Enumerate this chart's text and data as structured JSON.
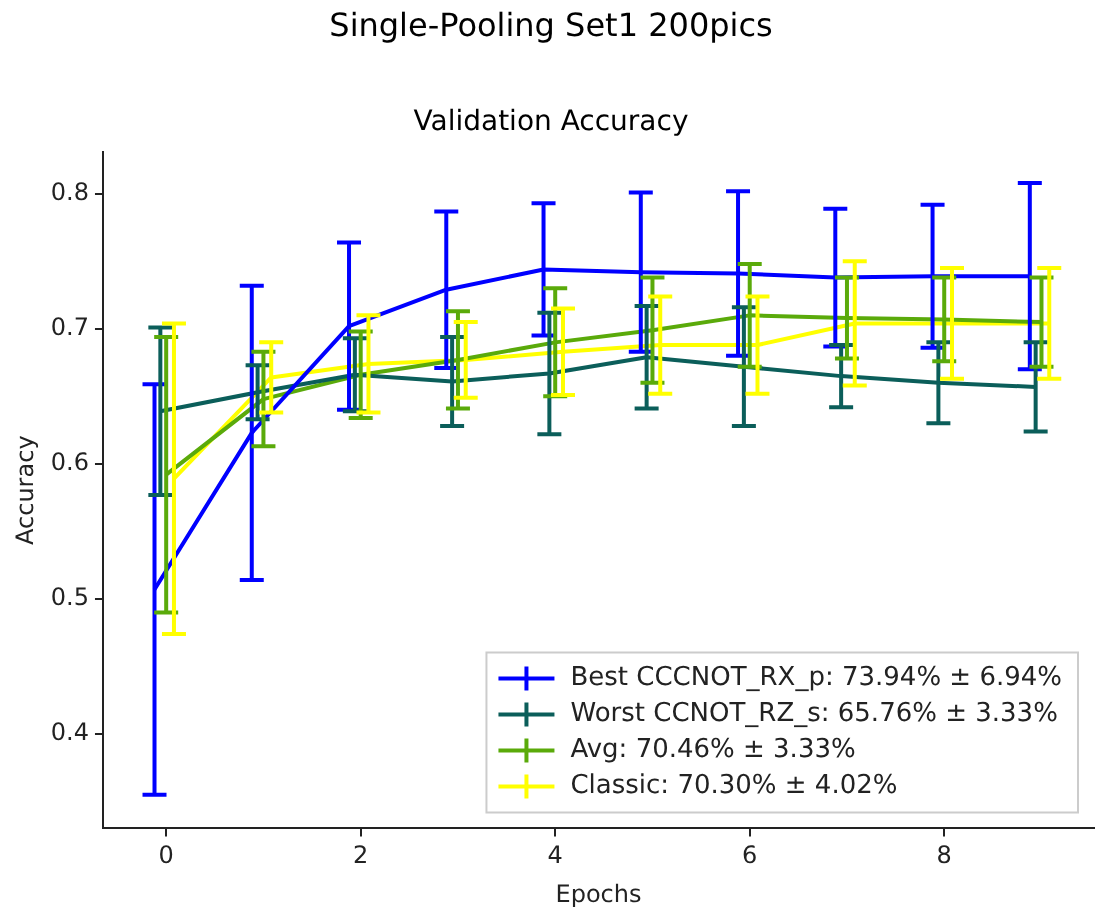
{
  "chart_data": {
    "type": "line",
    "title": "Single-Pooling Set1 200pics",
    "subtitle": "Validation Accuracy",
    "xlabel": "Epochs",
    "ylabel": "Accuracy",
    "xlim": [
      -0.65,
      9.54
    ],
    "xticks": [
      0,
      2,
      4,
      6,
      8
    ],
    "ylim": [
      0.33,
      0.831
    ],
    "yticks": [
      0.4,
      0.5,
      0.6,
      0.7,
      0.8
    ],
    "legend": "bottom right",
    "grid": false,
    "marker": "none",
    "series": [
      {
        "name": "Best CCCNOT_RX_p: 73.94% ± 6.94%",
        "color": "#0000ff",
        "x": [
          -0.12,
          0.88,
          1.88,
          2.88,
          3.88,
          4.88,
          5.88,
          6.88,
          7.88,
          8.88
        ],
        "values": [
          0.507,
          0.623,
          0.702,
          0.729,
          0.744,
          0.742,
          0.741,
          0.738,
          0.739,
          0.739
        ],
        "errors": [
          0.152,
          0.109,
          0.062,
          0.058,
          0.049,
          0.059,
          0.061,
          0.051,
          0.053,
          0.069
        ]
      },
      {
        "name": "Worst CCNOT_RZ_s: 65.76% ± 3.33%",
        "color": "#0b5e5a",
        "x": [
          -0.06,
          0.94,
          1.94,
          2.94,
          3.94,
          4.94,
          5.94,
          6.94,
          7.94,
          8.94
        ],
        "values": [
          0.639,
          0.653,
          0.666,
          0.661,
          0.667,
          0.679,
          0.672,
          0.665,
          0.66,
          0.657
        ],
        "errors": [
          0.062,
          0.02,
          0.027,
          0.033,
          0.045,
          0.038,
          0.044,
          0.023,
          0.03,
          0.033
        ]
      },
      {
        "name": "Avg: 70.46% ± 3.33%",
        "color": "#5aaa0a",
        "x": [
          0,
          1,
          2,
          3,
          4,
          5,
          6,
          7,
          8,
          9
        ],
        "values": [
          0.592,
          0.648,
          0.666,
          0.677,
          0.69,
          0.699,
          0.71,
          0.708,
          0.707,
          0.705
        ],
        "errors": [
          0.102,
          0.035,
          0.032,
          0.036,
          0.04,
          0.039,
          0.038,
          0.03,
          0.031,
          0.033
        ]
      },
      {
        "name": "Classic: 70.30% ± 4.02%",
        "color": "#ffff00",
        "x": [
          0.08,
          1.08,
          2.08,
          3.08,
          4.08,
          5.08,
          6.08,
          7.08,
          8.08,
          9.08
        ],
        "values": [
          0.589,
          0.664,
          0.674,
          0.677,
          0.683,
          0.688,
          0.688,
          0.704,
          0.704,
          0.704
        ],
        "errors": [
          0.115,
          0.026,
          0.036,
          0.028,
          0.032,
          0.036,
          0.036,
          0.046,
          0.041,
          0.041
        ]
      }
    ]
  }
}
